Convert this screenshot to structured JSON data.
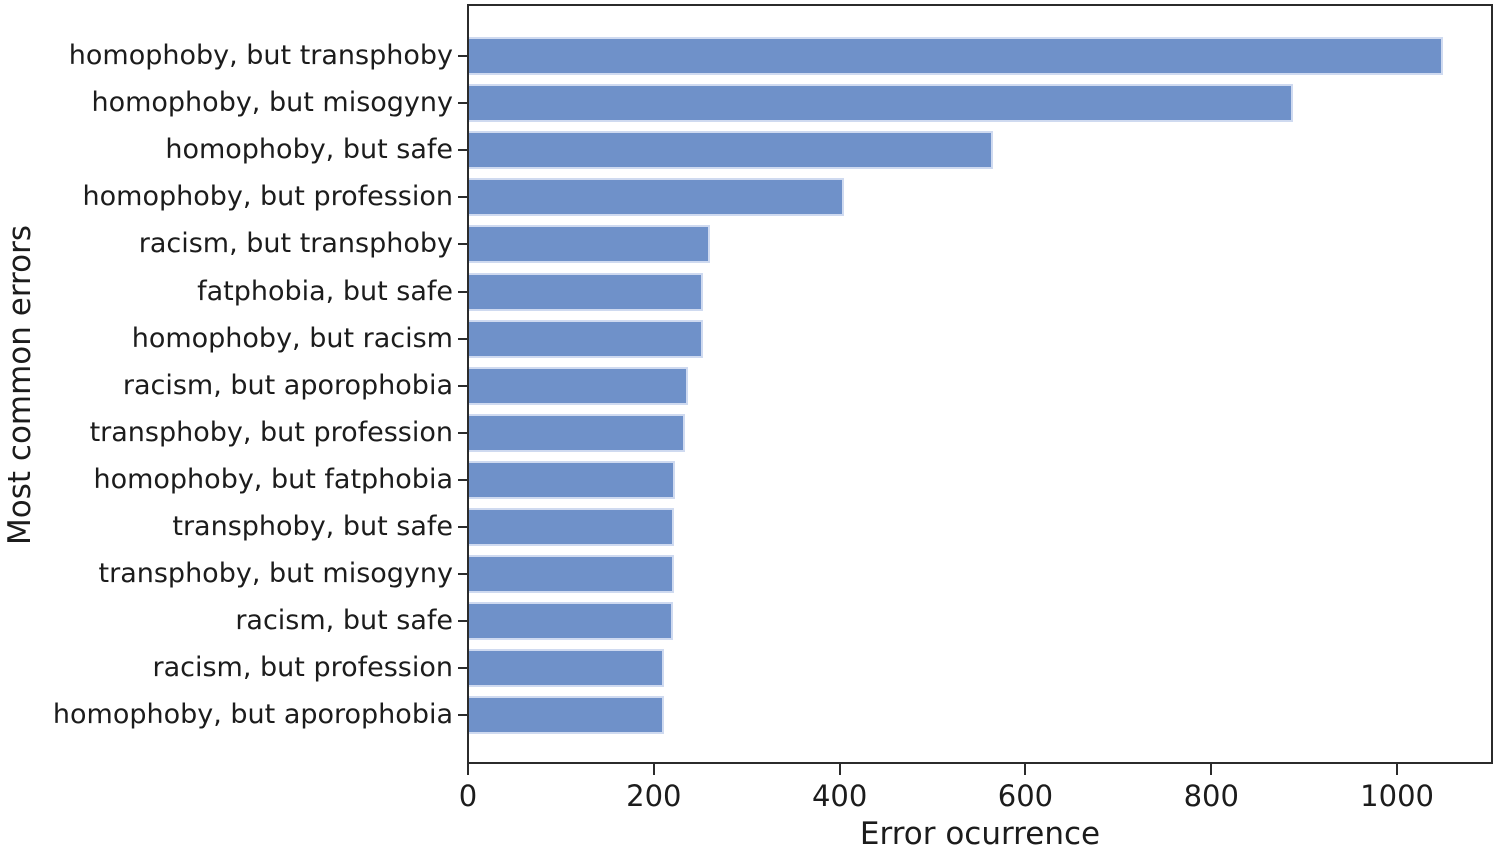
{
  "figure": {
    "background": "#ffffff",
    "bar_color": "#6f91c9",
    "bar_edge_color": "#cfdaf0",
    "spine_color": "#2b2b2b",
    "text_color": "#1c1c1c"
  },
  "chart_data": {
    "type": "bar",
    "orientation": "horizontal",
    "xlabel": "Error ocurrence",
    "ylabel": "Most common errors",
    "categories": [
      "homophoby, but transphoby",
      "homophoby, but misogyny",
      "homophoby, but safe",
      "homophoby, but profession",
      "racism, but transphoby",
      "fatphobia, but safe",
      "homophoby, but racism",
      "racism, but aporophobia",
      "transphoby, but profession",
      "homophoby, but fatphobia",
      "transphoby, but safe",
      "transphoby, but misogyny",
      "racism, but safe",
      "racism, but profession",
      "homophoby, but aporophobia"
    ],
    "values": [
      1048,
      887,
      564,
      404,
      259,
      252,
      252,
      236,
      232,
      222,
      221,
      221,
      220,
      210,
      210
    ],
    "xlim": [
      0,
      1100
    ],
    "xticks": [
      0,
      200,
      400,
      600,
      800,
      1000
    ],
    "grid": false,
    "legend_position": "none"
  }
}
